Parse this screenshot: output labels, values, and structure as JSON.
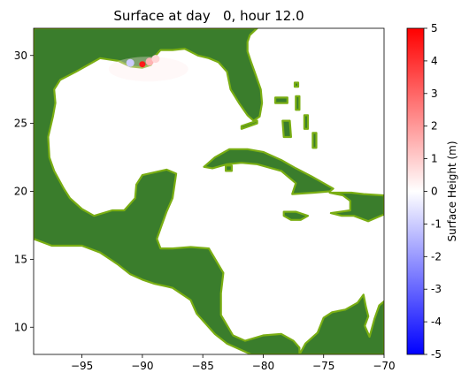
{
  "figure": {
    "title": "Surface at day   0, hour 12.0"
  },
  "chart_data": [
    {
      "type": "heatmap",
      "title": "Surface at day   0, hour 12.0",
      "xlabel": "",
      "ylabel": "",
      "xlim": [
        -99,
        -70
      ],
      "ylim": [
        8,
        32
      ],
      "x_ticks": [
        -95,
        -90,
        -85,
        -80,
        -75,
        -70
      ],
      "x_tick_labels": [
        "−95",
        "−90",
        "−85",
        "−80",
        "−75",
        "−70"
      ],
      "y_ticks": [
        10,
        15,
        20,
        25,
        30
      ],
      "y_tick_labels": [
        "10",
        "15",
        "20",
        "25",
        "30"
      ],
      "grid": false,
      "colors": {
        "land": "#3a7d2c",
        "coast": "#7aae13",
        "water": "#ffffff"
      },
      "land_polygons": [
        {
          "name": "north-america-central-america",
          "points": [
            [
              -99,
              32
            ],
            [
              -99,
              16.5
            ],
            [
              -97.5,
              16
            ],
            [
              -95,
              16
            ],
            [
              -93.5,
              15.5
            ],
            [
              -92,
              14.6
            ],
            [
              -91,
              13.9
            ],
            [
              -90,
              13.5
            ],
            [
              -89,
              13.2
            ],
            [
              -88,
              13
            ],
            [
              -87.5,
              12.9
            ],
            [
              -86,
              12
            ],
            [
              -85.5,
              11
            ],
            [
              -85,
              10.5
            ],
            [
              -84,
              9.5
            ],
            [
              -83,
              8.8
            ],
            [
              -82,
              8.4
            ],
            [
              -81,
              8
            ],
            [
              -77,
              8
            ],
            [
              -77,
              8.5
            ],
            [
              -77.5,
              9
            ],
            [
              -78.5,
              9.5
            ],
            [
              -80,
              9.4
            ],
            [
              -81.5,
              9
            ],
            [
              -82.5,
              9.4
            ],
            [
              -83.5,
              10.9
            ],
            [
              -83.5,
              12.5
            ],
            [
              -83.3,
              14
            ],
            [
              -84.5,
              15.8
            ],
            [
              -86,
              15.9
            ],
            [
              -87.5,
              15.8
            ],
            [
              -88.5,
              15.8
            ],
            [
              -88.8,
              16.5
            ],
            [
              -88.4,
              17.5
            ],
            [
              -88,
              18.5
            ],
            [
              -87.5,
              19.5
            ],
            [
              -87.2,
              21.3
            ],
            [
              -88,
              21.6
            ],
            [
              -90,
              21.2
            ],
            [
              -90.5,
              20.5
            ],
            [
              -90.6,
              19.5
            ],
            [
              -91.5,
              18.6
            ],
            [
              -92.5,
              18.6
            ],
            [
              -94,
              18.2
            ],
            [
              -95,
              18.7
            ],
            [
              -96,
              19.5
            ],
            [
              -96.5,
              20.2
            ],
            [
              -97.3,
              21.5
            ],
            [
              -97.7,
              22.5
            ],
            [
              -97.8,
              24
            ],
            [
              -97.4,
              25.5
            ],
            [
              -97.2,
              26.5
            ],
            [
              -97.3,
              27.5
            ],
            [
              -96.8,
              28.2
            ],
            [
              -95.5,
              28.8
            ],
            [
              -94.5,
              29.3
            ],
            [
              -93.5,
              29.8
            ],
            [
              -92,
              29.6
            ],
            [
              -91,
              29.2
            ],
            [
              -90,
              29.1
            ],
            [
              -89.3,
              29.3
            ],
            [
              -89,
              29.9
            ],
            [
              -88.5,
              30.4
            ],
            [
              -87.5,
              30.4
            ],
            [
              -86.5,
              30.5
            ],
            [
              -85.4,
              30
            ],
            [
              -84.5,
              29.8
            ],
            [
              -83.7,
              29.5
            ],
            [
              -83,
              28.8
            ],
            [
              -82.7,
              27.5
            ],
            [
              -82,
              26.5
            ],
            [
              -81.3,
              25.6
            ],
            [
              -80.8,
              25.2
            ],
            [
              -80.3,
              25.5
            ],
            [
              -80.1,
              26.5
            ],
            [
              -80.2,
              27.5
            ],
            [
              -80.6,
              28.5
            ],
            [
              -81,
              29.5
            ],
            [
              -81.3,
              30.3
            ],
            [
              -81.3,
              31
            ],
            [
              -81.1,
              31.5
            ],
            [
              -80.5,
              32
            ]
          ]
        },
        {
          "name": "south-america",
          "points": [
            [
              -77,
              8
            ],
            [
              -76.5,
              8.8
            ],
            [
              -75.5,
              9.6
            ],
            [
              -75,
              10.7
            ],
            [
              -74.3,
              11.1
            ],
            [
              -73.2,
              11.3
            ],
            [
              -72.2,
              11.8
            ],
            [
              -71.7,
              12.4
            ],
            [
              -71.5,
              11.5
            ],
            [
              -71.3,
              10.8
            ],
            [
              -71.6,
              10.1
            ],
            [
              -71.2,
              9.3
            ],
            [
              -70.8,
              10.6
            ],
            [
              -70.4,
              11.6
            ],
            [
              -70,
              11.9
            ],
            [
              -70,
              8
            ]
          ]
        },
        {
          "name": "cuba",
          "points": [
            [
              -84.9,
              21.8
            ],
            [
              -84,
              22.5
            ],
            [
              -82.8,
              23.1
            ],
            [
              -81.3,
              23.1
            ],
            [
              -80,
              22.9
            ],
            [
              -78.5,
              22.3
            ],
            [
              -77.3,
              21.7
            ],
            [
              -76,
              21.1
            ],
            [
              -74.2,
              20.2
            ],
            [
              -74.5,
              20
            ],
            [
              -75.8,
              19.9
            ],
            [
              -77.6,
              19.8
            ],
            [
              -77.3,
              20.6
            ],
            [
              -78.5,
              21.5
            ],
            [
              -80.5,
              22
            ],
            [
              -81.8,
              22.1
            ],
            [
              -83,
              22
            ],
            [
              -84.2,
              21.7
            ]
          ]
        },
        {
          "name": "hispaniola",
          "points": [
            [
              -74.5,
              19.9
            ],
            [
              -73.3,
              19.9
            ],
            [
              -72.7,
              19.9
            ],
            [
              -71.7,
              19.8
            ],
            [
              -70,
              19.7
            ],
            [
              -70,
              18.3
            ],
            [
              -71.3,
              17.8
            ],
            [
              -72.5,
              18.2
            ],
            [
              -73.5,
              18.2
            ],
            [
              -74.4,
              18.4
            ],
            [
              -72.8,
              18.6
            ],
            [
              -72.8,
              19.3
            ],
            [
              -73.4,
              19.7
            ]
          ]
        },
        {
          "name": "jamaica",
          "points": [
            [
              -78.3,
              18.5
            ],
            [
              -77.3,
              18.5
            ],
            [
              -76.3,
              18.2
            ],
            [
              -76.9,
              17.9
            ],
            [
              -77.7,
              17.9
            ],
            [
              -78.3,
              18.2
            ]
          ]
        },
        {
          "name": "isle-of-youth",
          "points": [
            [
              -83.1,
              21.9
            ],
            [
              -82.6,
              21.9
            ],
            [
              -82.6,
              21.5
            ],
            [
              -83.1,
              21.5
            ]
          ]
        },
        {
          "name": "florida-keys",
          "points": [
            [
              -81.8,
              24.6
            ],
            [
              -80.5,
              25
            ],
            [
              -80.5,
              25.2
            ],
            [
              -81.8,
              24.8
            ]
          ]
        },
        {
          "name": "bahamas-andros",
          "points": [
            [
              -78.4,
              25.2
            ],
            [
              -77.8,
              25.2
            ],
            [
              -77.7,
              24
            ],
            [
              -78.3,
              24
            ]
          ]
        },
        {
          "name": "bahamas-grand",
          "points": [
            [
              -79,
              26.9
            ],
            [
              -78,
              26.9
            ],
            [
              -78,
              26.5
            ],
            [
              -79,
              26.5
            ]
          ]
        },
        {
          "name": "bahamas-abaco",
          "points": [
            [
              -77.3,
              27
            ],
            [
              -77,
              27
            ],
            [
              -77,
              26
            ],
            [
              -77.3,
              26
            ]
          ]
        },
        {
          "name": "bahamas-eleuthera",
          "points": [
            [
              -76.6,
              25.6
            ],
            [
              -76.3,
              25.6
            ],
            [
              -76.3,
              24.6
            ],
            [
              -76.6,
              24.6
            ]
          ]
        },
        {
          "name": "bahamas-south",
          "points": [
            [
              -75.9,
              24.3
            ],
            [
              -75.6,
              24.3
            ],
            [
              -75.6,
              23.2
            ],
            [
              -75.9,
              23.2
            ]
          ]
        },
        {
          "name": "bahamas-north-speck",
          "points": [
            [
              -77.4,
              28
            ],
            [
              -77.1,
              28
            ],
            [
              -77.1,
              27.7
            ],
            [
              -77.4,
              27.7
            ]
          ]
        }
      ],
      "anomaly_points": [
        {
          "x": -90.0,
          "y": 29.35,
          "value": 4.5
        },
        {
          "x": -89.4,
          "y": 29.55,
          "value": 1.5
        },
        {
          "x": -88.9,
          "y": 29.75,
          "value": 0.8
        },
        {
          "x": -91.0,
          "y": 29.45,
          "value": -1.0
        }
      ],
      "colorbar": {
        "label": "Surface Height (m)",
        "min": -5,
        "max": 5,
        "ticks": [
          5,
          4,
          3,
          2,
          1,
          0,
          -1,
          -2,
          -3,
          -4,
          -5
        ],
        "tick_labels": [
          "5",
          "4",
          "3",
          "2",
          "1",
          "0",
          "-1",
          "-2",
          "-3",
          "-4",
          "-5"
        ],
        "colormap": "bwr",
        "stops": [
          "#0000ff",
          "#ffffff",
          "#ff0000"
        ]
      }
    }
  ]
}
